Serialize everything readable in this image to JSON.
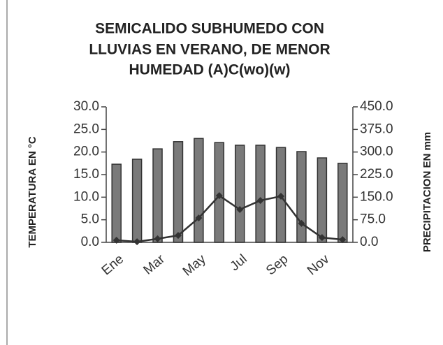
{
  "chart_data": {
    "type": "bar",
    "title": [
      "SEMICALIDO SUBHUMEDO CON",
      "LLUVIAS EN VERANO, DE MENOR",
      "HUMEDAD (A)C(wo)(w)"
    ],
    "ylabel": "TEMPERATURA EN °C",
    "y2label": "PRECIPITACION EN mm",
    "categories": [
      "Ene",
      null,
      "Mar",
      null,
      "May",
      null,
      "Jul",
      null,
      "Sep",
      null,
      "Nov",
      null
    ],
    "series": [
      {
        "type": "bar",
        "color": "#7a7a7a",
        "values": [
          17.3,
          18.4,
          20.7,
          22.3,
          23.0,
          22.1,
          21.5,
          21.5,
          21.0,
          20.1,
          18.7,
          17.5
        ]
      },
      {
        "type": "line",
        "axis": "y2",
        "color": "#333333",
        "values": [
          7,
          2,
          12,
          23,
          81,
          155,
          109,
          139,
          153,
          63,
          16,
          9
        ]
      }
    ],
    "ylim": [
      0,
      30
    ],
    "yticks": [
      {
        "value": 0,
        "label": "0.0"
      },
      {
        "value": 5,
        "label": "5.0"
      },
      {
        "value": 10,
        "label": "10.0"
      },
      {
        "value": 15,
        "label": "15.0"
      },
      {
        "value": 20,
        "label": "20.0"
      },
      {
        "value": 25,
        "label": "25.0"
      },
      {
        "value": 30,
        "label": "30.0"
      }
    ],
    "y2lim": [
      0,
      450
    ],
    "y2ticks": [
      {
        "value": 0,
        "label": "0.0"
      },
      {
        "value": 75,
        "label": "75.0"
      },
      {
        "value": 150,
        "label": "150.0"
      },
      {
        "value": 225,
        "label": "225.0"
      },
      {
        "value": 300,
        "label": "300.0"
      },
      {
        "value": 375,
        "label": "375.0"
      },
      {
        "value": 450,
        "label": "450.0"
      }
    ]
  }
}
